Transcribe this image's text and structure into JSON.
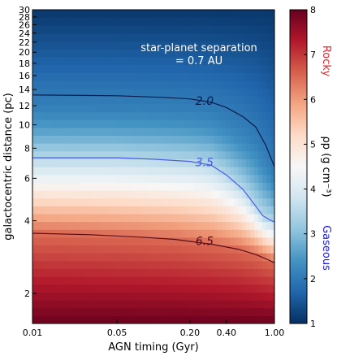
{
  "chart_data": {
    "type": "heatmap",
    "xlabel": "AGN timing (Gyr)",
    "ylabel": "galactocentric distance (pc)",
    "x_scale": "log",
    "y_scale": "log",
    "xlim": [
      0.01,
      1.0
    ],
    "ylim": [
      1.5,
      30
    ],
    "x_ticks": [
      {
        "value": 0.01,
        "label": "0.01"
      },
      {
        "value": 0.05,
        "label": "0.05"
      },
      {
        "value": 0.2,
        "label": "0.20"
      },
      {
        "value": 0.4,
        "label": "0.40"
      },
      {
        "value": 1.0,
        "label": "1.00"
      }
    ],
    "y_ticks": [
      {
        "value": 2,
        "label": "2"
      },
      {
        "value": 4,
        "label": "4"
      },
      {
        "value": 6,
        "label": "6"
      },
      {
        "value": 8,
        "label": "8"
      },
      {
        "value": 10,
        "label": "10"
      },
      {
        "value": 12,
        "label": "12"
      },
      {
        "value": 14,
        "label": "14"
      },
      {
        "value": 16,
        "label": "16"
      },
      {
        "value": 18,
        "label": "18"
      },
      {
        "value": 20,
        "label": "20"
      },
      {
        "value": 22,
        "label": "22"
      },
      {
        "value": 24,
        "label": "24"
      },
      {
        "value": 26,
        "label": "26"
      },
      {
        "value": 28,
        "label": "28"
      },
      {
        "value": 30,
        "label": "30"
      }
    ],
    "annotation": [
      "star-planet separation",
      "= 0.7 AU"
    ],
    "colorbar": {
      "label": "ρp (g cm⁻³)",
      "min": 1,
      "max": 8,
      "ticks": [
        1,
        2,
        3,
        4,
        5,
        6,
        7,
        8
      ],
      "top_label": "Rocky",
      "top_label_color": "#e8242a",
      "bottom_label": "Gaseous",
      "bottom_label_color": "#1a1adb",
      "colormap": "RdBu_r"
    },
    "contours": [
      {
        "level": "2.0",
        "color": "#0b1a4a",
        "points": [
          [
            0.01,
            13.3
          ],
          [
            0.05,
            13.2
          ],
          [
            0.12,
            13.0
          ],
          [
            0.2,
            12.8
          ],
          [
            0.3,
            12.4
          ],
          [
            0.4,
            11.8
          ],
          [
            0.55,
            10.8
          ],
          [
            0.7,
            9.8
          ],
          [
            0.85,
            8.2
          ],
          [
            1.0,
            6.7
          ]
        ],
        "label_at": [
          0.2,
          12.6
        ]
      },
      {
        "level": "3.5",
        "color": "#4a5ee0",
        "points": [
          [
            0.01,
            7.3
          ],
          [
            0.05,
            7.3
          ],
          [
            0.1,
            7.2
          ],
          [
            0.2,
            7.05
          ],
          [
            0.3,
            6.8
          ],
          [
            0.4,
            6.2
          ],
          [
            0.55,
            5.4
          ],
          [
            0.7,
            4.6
          ],
          [
            0.8,
            4.2
          ],
          [
            0.9,
            4.05
          ],
          [
            1.0,
            3.95
          ]
        ],
        "label_at": [
          0.2,
          7.0
        ]
      },
      {
        "level": "6.5",
        "color": "#5a0d18",
        "points": [
          [
            0.01,
            3.55
          ],
          [
            0.03,
            3.5
          ],
          [
            0.08,
            3.42
          ],
          [
            0.15,
            3.35
          ],
          [
            0.3,
            3.2
          ],
          [
            0.5,
            3.05
          ],
          [
            0.7,
            2.9
          ],
          [
            0.85,
            2.78
          ],
          [
            1.0,
            2.68
          ]
        ],
        "label_at": [
          0.2,
          3.3
        ]
      }
    ],
    "grid": false,
    "legend": "none"
  }
}
